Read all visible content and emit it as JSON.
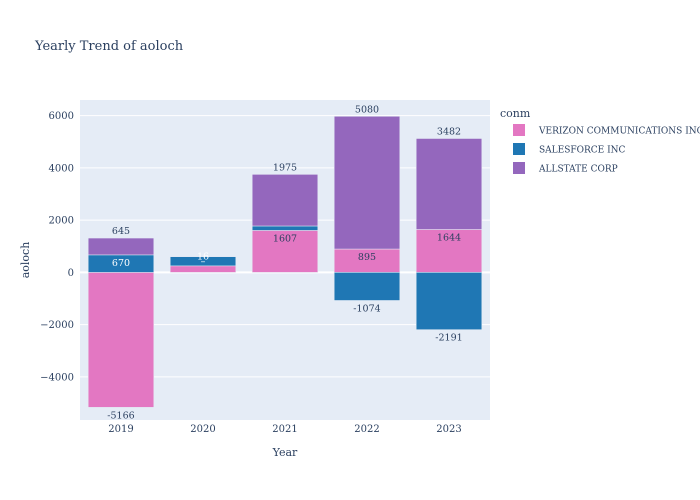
{
  "chart_data": {
    "type": "bar",
    "barmode": "relative",
    "title": "Yearly Trend of aoloch",
    "xlabel": "Year",
    "ylabel": "aoloch",
    "legend_title": "conm",
    "legend_position": "right",
    "grid": true,
    "categories": [
      "2019",
      "2020",
      "2021",
      "2022",
      "2023"
    ],
    "ylim": [
      -5650,
      6600
    ],
    "yticks": [
      -4000,
      -2000,
      0,
      2000,
      4000,
      6000
    ],
    "ytick_labels": [
      "−4000",
      "−2000",
      "0",
      "2000",
      "4000",
      "6000"
    ],
    "series": [
      {
        "name": "VERIZON COMMUNICATIONS INC",
        "color": "#e377c2",
        "values": [
          -5166,
          250,
          1607,
          895,
          1644
        ],
        "labels": [
          "-5166",
          "",
          "1607",
          "895",
          "1644"
        ]
      },
      {
        "name": "SALESFORCE INC",
        "color": "#1f77b4",
        "values": [
          670,
          350,
          170,
          -1074,
          -2191
        ],
        "labels": [
          "670",
          "–",
          "",
          "-1074",
          "-2191"
        ]
      },
      {
        "name": "ALLSTATE CORP",
        "color": "#9467bd",
        "values": [
          645,
          16,
          1975,
          5080,
          3482
        ],
        "labels": [
          "645",
          "16",
          "1975",
          "5080",
          "3482"
        ]
      }
    ]
  }
}
